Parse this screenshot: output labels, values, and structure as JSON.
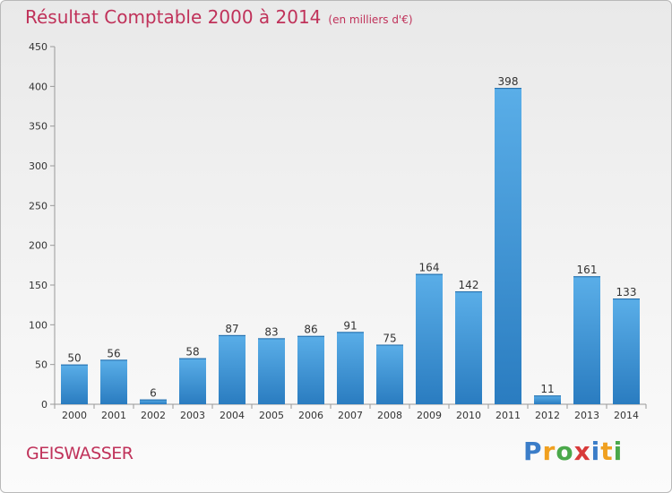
{
  "header": {
    "title": "Résultat Comptable 2000 à 2014",
    "subtitle": "(en milliers d'€)"
  },
  "footer": {
    "city": "GEISWASSER",
    "logo_letters": [
      "P",
      "r",
      "o",
      "x",
      "i",
      "t",
      "i"
    ],
    "logo_colors": [
      "#3b7dc8",
      "#f0a020",
      "#4aa84a",
      "#d83a3a",
      "#3b7dc8",
      "#f0a020",
      "#4aa84a"
    ]
  },
  "chart_data": {
    "type": "bar",
    "title": "Résultat Comptable 2000 à 2014",
    "subtitle": "(en milliers d'€)",
    "categories": [
      "2000",
      "2001",
      "2002",
      "2003",
      "2004",
      "2005",
      "2006",
      "2007",
      "2008",
      "2009",
      "2010",
      "2011",
      "2012",
      "2013",
      "2014"
    ],
    "values": [
      50,
      56,
      6,
      58,
      87,
      83,
      86,
      91,
      75,
      164,
      142,
      398,
      11,
      161,
      133
    ],
    "ylim": [
      0,
      450
    ],
    "yticks": [
      0,
      50,
      100,
      150,
      200,
      250,
      300,
      350,
      400,
      450
    ],
    "grid": false,
    "bar_color_top": "#5aaee8",
    "bar_color_bottom": "#2a7cc0",
    "title_color": "#c0325a"
  }
}
